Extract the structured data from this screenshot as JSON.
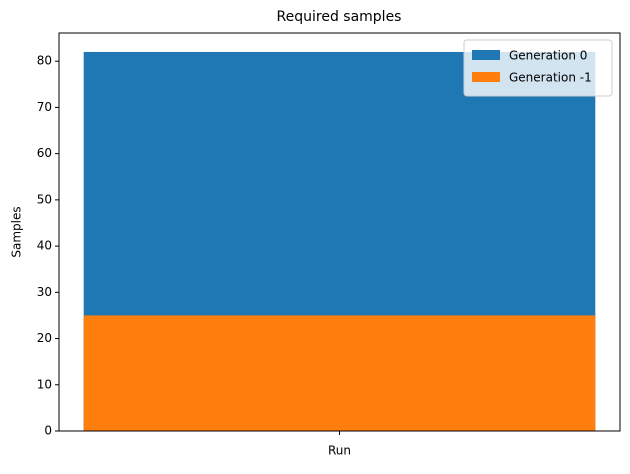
{
  "chart_data": {
    "type": "bar",
    "title": "Required samples",
    "ylabel": "Samples",
    "categories": [
      "Run"
    ],
    "series": [
      {
        "name": "Generation 0",
        "color": "#1f77b4",
        "values": [
          82
        ]
      },
      {
        "name": "Generation -1",
        "color": "#ff7f0e",
        "values": [
          25
        ]
      }
    ],
    "ylim": [
      0,
      86.1
    ],
    "yticks": [
      0,
      10,
      20,
      30,
      40,
      50,
      60,
      70,
      80
    ],
    "legend": "upper right"
  }
}
